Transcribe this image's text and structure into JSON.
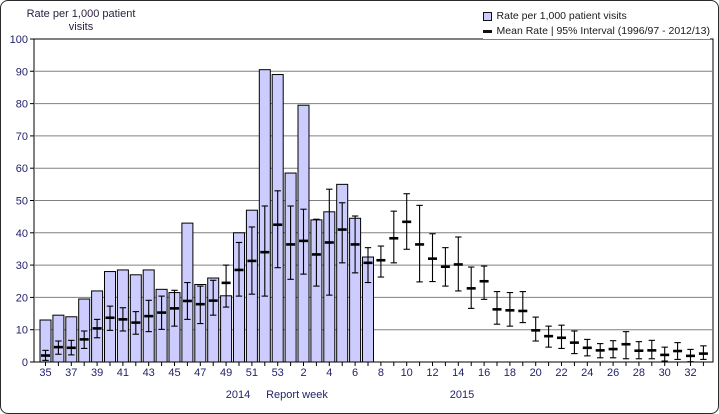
{
  "title": {
    "line1": "Rate per 1,000  patient",
    "line2": "visits"
  },
  "legend": {
    "items": [
      {
        "marker": "bar-swatch",
        "label": "Rate per 1,000 patient visits"
      },
      {
        "marker": "mean-dash",
        "label": "Mean Rate | 95% Interval (1996/97 - 2012/13)"
      }
    ]
  },
  "x_axis": {
    "title": "Report week",
    "year_left": "2014",
    "year_right": "2015"
  },
  "colors": {
    "bar_fill": "#ccccff",
    "bar_border": "#000000",
    "error_bar": "#000000",
    "gridline": "#808080",
    "axis_line": "#000000",
    "tick_label": "#23236b",
    "plot_bg": "#ffffff"
  },
  "chart_data": {
    "type": "bar",
    "title": "Rate per 1,000 patient visits",
    "xlabel": "Report week",
    "ylabel": "Rate per 1,000 patient visits",
    "ylim": [
      0,
      100
    ],
    "y_ticks": [
      0,
      10,
      20,
      30,
      40,
      50,
      60,
      70,
      80,
      90,
      100
    ],
    "grid": true,
    "legend_position": "top-right",
    "x_years": [
      {
        "label": "2014",
        "weeks": "35-53"
      },
      {
        "label": "2015",
        "weeks": "1-33"
      }
    ],
    "categories": [
      "35",
      "36",
      "37",
      "38",
      "39",
      "40",
      "41",
      "42",
      "43",
      "44",
      "45",
      "46",
      "47",
      "48",
      "49",
      "50",
      "51",
      "52",
      "53",
      "1",
      "2",
      "3",
      "4",
      "5",
      "6",
      "7",
      "8",
      "9",
      "10",
      "11",
      "12",
      "13",
      "14",
      "15",
      "16",
      "17",
      "18",
      "19",
      "20",
      "21",
      "22",
      "23",
      "24",
      "25",
      "26",
      "27",
      "28",
      "29",
      "30",
      "31",
      "32",
      "33"
    ],
    "x_tick_label_every": 2,
    "series": [
      {
        "name": "Rate per 1,000 patient visits",
        "type": "bar",
        "values": [
          13,
          14.5,
          14,
          19.5,
          22,
          28,
          28.5,
          27,
          28.5,
          22.5,
          21.5,
          43,
          24,
          26,
          20.5,
          40,
          47,
          90.5,
          89,
          58.5,
          79.5,
          44,
          46.5,
          55,
          44.5,
          32.5,
          null,
          null,
          null,
          null,
          null,
          null,
          null,
          null,
          null,
          null,
          null,
          null,
          null,
          null,
          null,
          null,
          null,
          null,
          null,
          null,
          null,
          null,
          null,
          null,
          null,
          null
        ]
      },
      {
        "name": "Mean Rate | 95% Interval (1996/97 - 2012/13)",
        "type": "errorbar",
        "mean": [
          2,
          4.6,
          4.4,
          7,
          10.4,
          13.7,
          13.2,
          12.2,
          14.2,
          15.3,
          16.6,
          18.9,
          17.9,
          19,
          24.5,
          28.5,
          31.3,
          34,
          42.5,
          36.4,
          37.5,
          33.3,
          37,
          41,
          36.4,
          30.7,
          31.5,
          38.3,
          43.4,
          36.4,
          32,
          29.5,
          30.2,
          22.8,
          25,
          16.3,
          16,
          15.8,
          9.8,
          8,
          7.5,
          6,
          4.4,
          3.6,
          4,
          5.5,
          3.5,
          3.6,
          2.2,
          3.4,
          1.9,
          2.6
        ],
        "lo": [
          0.5,
          2.4,
          2.2,
          4.2,
          7.5,
          9.8,
          9.6,
          8.6,
          9.4,
          10.1,
          11.1,
          13.2,
          11.9,
          14.5,
          17,
          20.4,
          21,
          20.4,
          29.2,
          25.6,
          27.2,
          23.5,
          20.7,
          30.7,
          27.6,
          24.6,
          26.3,
          30.7,
          34.9,
          24.8,
          24.9,
          23.5,
          22,
          16.6,
          19.4,
          11.7,
          11.1,
          12.2,
          6.5,
          4.6,
          4.2,
          2.6,
          1.9,
          1.3,
          1.3,
          1,
          1,
          1,
          0.3,
          0.8,
          0.1,
          0.8
        ],
        "hi": [
          3.6,
          6.5,
          6.7,
          9.6,
          13.2,
          17.3,
          16.8,
          15.6,
          19.1,
          20.4,
          22.2,
          24.6,
          23.5,
          25.3,
          30,
          37,
          41.8,
          48.3,
          53,
          48.3,
          47.3,
          44.2,
          53.5,
          49.3,
          45.2,
          35.4,
          35.9,
          46.7,
          52.1,
          48.5,
          39.7,
          35.4,
          38.7,
          29.4,
          29.7,
          21.8,
          21.5,
          21.8,
          13.9,
          11.1,
          11.4,
          9.6,
          7,
          5.7,
          6.6,
          9.4,
          6.3,
          6.7,
          4.6,
          6,
          3.9,
          5
        ]
      }
    ]
  }
}
